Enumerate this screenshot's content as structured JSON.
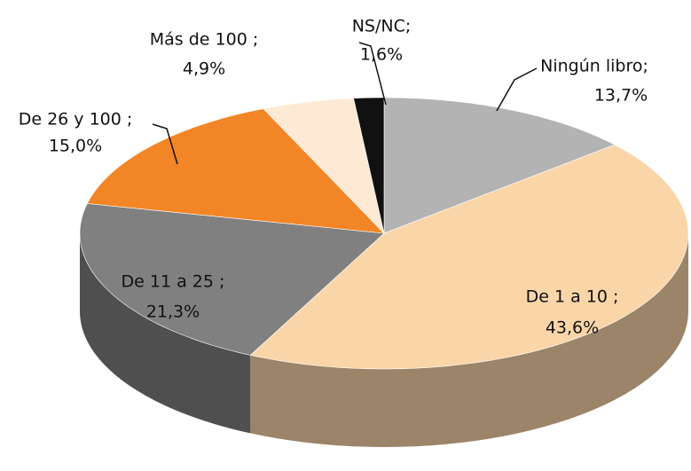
{
  "chart_data": {
    "type": "pie",
    "categories": [
      "Ningún libro;",
      "De 1 a 10 ;",
      "De 11 a 25 ;",
      "De 26 y 100 ;",
      "Más de 100 ;",
      "NS/NC;"
    ],
    "values": [
      13.7,
      43.6,
      21.3,
      15.0,
      4.9,
      1.6
    ],
    "value_labels": [
      "13,7%",
      "43,6%",
      "21,3%",
      "15,0%",
      "4,9%",
      "1,6%"
    ],
    "colors": [
      "#b3b3b3",
      "#fad5a8",
      "#808080",
      "#f28526",
      "#fde9d4",
      "#111111"
    ]
  }
}
